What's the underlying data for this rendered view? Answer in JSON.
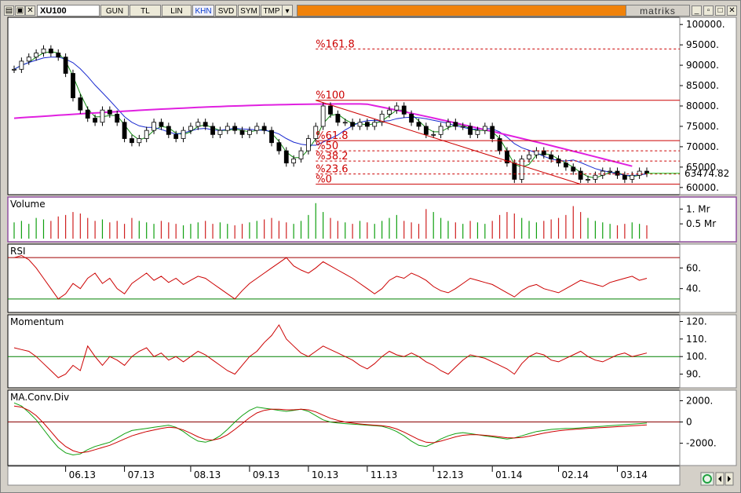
{
  "toolbar": {
    "symbol": "XU100",
    "buttons": [
      "GUN",
      "TL",
      "LIN",
      "KHN",
      "SVD",
      "SYM",
      "TMP"
    ],
    "active": "KHN",
    "brand": "matriks"
  },
  "chart_data": [
    {
      "type": "candlestick",
      "panel": "price",
      "last_value_label": "63474.82",
      "yticks": [
        "100000.",
        "95000.",
        "90000.",
        "85000.",
        "80000.",
        "75000.",
        "70000.",
        "65000.",
        "60000."
      ],
      "ylim": [
        59000,
        101000
      ],
      "x": [
        "06.13",
        "07.13",
        "08.13",
        "09.13",
        "10.13",
        "11.13",
        "12.13",
        "01.14",
        "02.14",
        "03.14"
      ],
      "close_series": [
        89000,
        91000,
        92000,
        93000,
        94000,
        93000,
        92000,
        88000,
        82000,
        79000,
        77000,
        76000,
        79000,
        78000,
        76000,
        72000,
        71000,
        72000,
        74000,
        76000,
        75000,
        73000,
        72000,
        74000,
        75000,
        76000,
        75000,
        73000,
        74000,
        75000,
        74000,
        73000,
        74000,
        75000,
        74000,
        71000,
        69000,
        66000,
        67000,
        69000,
        72000,
        75000,
        80000,
        78000,
        76000,
        76000,
        75000,
        76000,
        75000,
        76000,
        78000,
        79000,
        80000,
        78000,
        76000,
        75000,
        73000,
        73000,
        75000,
        76000,
        75000,
        75000,
        73000,
        74000,
        75000,
        72000,
        69000,
        66000,
        62000,
        67000,
        68000,
        69000,
        68000,
        67000,
        66000,
        65000,
        64000,
        62000,
        62000,
        63000,
        64000,
        64000,
        63000,
        62000,
        63000,
        64000,
        63474.82
      ],
      "fibonacci": [
        {
          "label": "%161.8",
          "value": 94000
        },
        {
          "label": "%100",
          "value": 81400
        },
        {
          "label": "%61.8",
          "value": 71500
        },
        {
          "label": "%50",
          "value": 69000
        },
        {
          "label": "%38.2",
          "value": 66500
        },
        {
          "label": "%23.6",
          "value": 63300
        },
        {
          "label": "%0",
          "value": 60800
        }
      ],
      "colors": {
        "ma_long": "#e020e0",
        "ma_mid": "#1a2ad0",
        "ma_short": "#108a10",
        "fib": "#cc0000"
      }
    },
    {
      "type": "bar",
      "panel": "volume",
      "title": "Volume",
      "yticks": [
        "1. Mr",
        "0.5 Mr"
      ],
      "ylim": [
        0,
        1.3
      ],
      "values": [
        0.55,
        0.6,
        0.5,
        0.7,
        0.65,
        0.6,
        0.75,
        0.8,
        0.9,
        0.85,
        0.7,
        0.6,
        0.65,
        0.55,
        0.6,
        0.5,
        0.7,
        0.6,
        0.55,
        0.5,
        0.6,
        0.55,
        0.5,
        0.45,
        0.5,
        0.55,
        0.6,
        0.5,
        0.55,
        0.5,
        0.45,
        0.5,
        0.55,
        0.6,
        0.65,
        0.7,
        0.6,
        0.55,
        0.5,
        0.6,
        0.8,
        1.2,
        0.9,
        0.7,
        0.6,
        0.55,
        0.5,
        0.6,
        0.55,
        0.5,
        0.6,
        0.7,
        0.8,
        0.6,
        0.55,
        0.5,
        1.0,
        0.9,
        0.7,
        0.6,
        0.55,
        0.5,
        0.6,
        0.55,
        0.5,
        0.6,
        0.8,
        0.9,
        0.85,
        0.7,
        0.6,
        0.55,
        0.6,
        0.65,
        0.7,
        0.8,
        1.1,
        0.9,
        0.7,
        0.6,
        0.55,
        0.5,
        0.45,
        0.5,
        0.55,
        0.5,
        0.45
      ]
    },
    {
      "type": "line",
      "panel": "rsi",
      "title": "RSI",
      "yticks": [
        "60.",
        "40."
      ],
      "ylim": [
        20,
        80
      ],
      "levels": [
        70,
        30
      ],
      "values": [
        70,
        72,
        68,
        60,
        50,
        40,
        30,
        35,
        45,
        40,
        50,
        55,
        45,
        50,
        40,
        35,
        45,
        50,
        55,
        48,
        52,
        46,
        50,
        44,
        48,
        52,
        50,
        45,
        40,
        35,
        30,
        38,
        45,
        50,
        55,
        60,
        65,
        70,
        62,
        58,
        55,
        60,
        66,
        62,
        58,
        54,
        50,
        45,
        40,
        35,
        40,
        48,
        52,
        50,
        55,
        52,
        48,
        42,
        38,
        36,
        40,
        45,
        50,
        48,
        46,
        44,
        40,
        36,
        32,
        38,
        42,
        44,
        40,
        38,
        36,
        40,
        44,
        48,
        46,
        44,
        42,
        46,
        48,
        50,
        52,
        48,
        50
      ]
    },
    {
      "type": "line",
      "panel": "momentum",
      "title": "Momentum",
      "yticks": [
        "120.",
        "110.",
        "100.",
        "90."
      ],
      "ylim": [
        84,
        122
      ],
      "level": 100,
      "values": [
        105,
        104,
        103,
        100,
        96,
        92,
        88,
        90,
        95,
        92,
        106,
        100,
        95,
        100,
        98,
        95,
        100,
        103,
        105,
        100,
        102,
        98,
        100,
        97,
        100,
        103,
        101,
        98,
        95,
        92,
        90,
        95,
        100,
        103,
        108,
        112,
        118,
        110,
        106,
        102,
        100,
        103,
        106,
        104,
        102,
        100,
        98,
        95,
        93,
        96,
        100,
        103,
        101,
        100,
        102,
        100,
        97,
        95,
        92,
        90,
        94,
        98,
        101,
        100,
        99,
        97,
        95,
        93,
        90,
        96,
        100,
        102,
        101,
        98,
        97,
        99,
        101,
        103,
        100,
        98,
        97,
        99,
        101,
        102,
        100,
        101,
        102
      ]
    },
    {
      "type": "line",
      "panel": "macd",
      "title": "MA.Conv.Div",
      "yticks": [
        "2000.",
        "0",
        "-2000."
      ],
      "ylim": [
        -3800,
        2700
      ],
      "level": 0,
      "macd": [
        1800,
        1500,
        900,
        200,
        -700,
        -1600,
        -2400,
        -2900,
        -3100,
        -3000,
        -2600,
        -2300,
        -2100,
        -1900,
        -1500,
        -1100,
        -800,
        -700,
        -600,
        -500,
        -400,
        -300,
        -500,
        -900,
        -1400,
        -1800,
        -1900,
        -1700,
        -1300,
        -700,
        0,
        600,
        1100,
        1400,
        1300,
        1200,
        1100,
        1000,
        1100,
        1200,
        1000,
        600,
        200,
        0,
        -100,
        -150,
        -200,
        -250,
        -300,
        -350,
        -400,
        -600,
        -900,
        -1300,
        -1800,
        -2200,
        -2300,
        -2000,
        -1600,
        -1300,
        -1100,
        -1000,
        -1100,
        -1200,
        -1300,
        -1400,
        -1500,
        -1600,
        -1500,
        -1300,
        -1100,
        -900,
        -800,
        -700,
        -650,
        -600,
        -600,
        -550,
        -500,
        -450,
        -400,
        -350,
        -300,
        -250,
        -200,
        -150,
        -100
      ],
      "signal": [
        1500,
        1400,
        1100,
        600,
        -100,
        -900,
        -1700,
        -2300,
        -2700,
        -2900,
        -2800,
        -2600,
        -2400,
        -2200,
        -1900,
        -1600,
        -1300,
        -1100,
        -900,
        -750,
        -600,
        -500,
        -550,
        -750,
        -1050,
        -1400,
        -1650,
        -1700,
        -1550,
        -1200,
        -700,
        -150,
        400,
        850,
        1100,
        1200,
        1200,
        1150,
        1150,
        1200,
        1150,
        950,
        650,
        350,
        150,
        0,
        -100,
        -180,
        -250,
        -300,
        -350,
        -450,
        -650,
        -950,
        -1300,
        -1650,
        -1900,
        -1950,
        -1800,
        -1600,
        -1400,
        -1250,
        -1200,
        -1200,
        -1250,
        -1320,
        -1400,
        -1480,
        -1500,
        -1450,
        -1350,
        -1200,
        -1050,
        -930,
        -830,
        -750,
        -700,
        -650,
        -600,
        -560,
        -520,
        -480,
        -440,
        -400,
        -360,
        -320,
        -280
      ]
    }
  ]
}
